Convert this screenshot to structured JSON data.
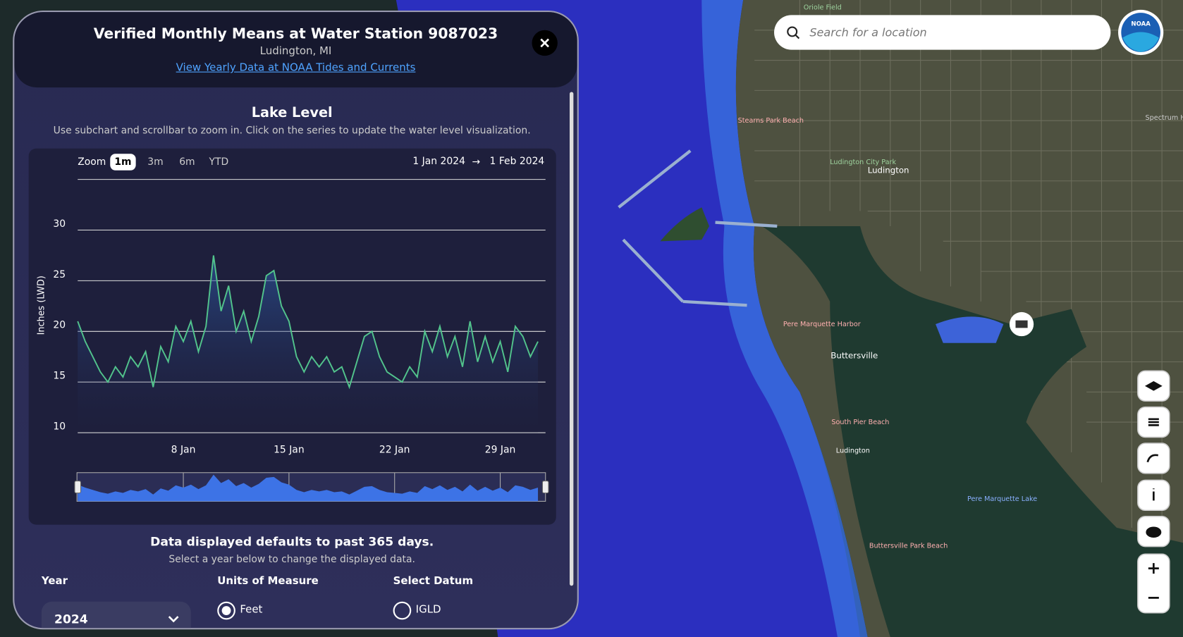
{
  "panel": {
    "title": "Verified Monthly Means at Water Station 9087023",
    "location": "Ludington, MI",
    "link": "View Yearly Data at NOAA Tides and Currents"
  },
  "chart_data": {
    "type": "line",
    "title": "Lake Level",
    "subtitle": "Use subchart and scrollbar to zoom in. Click on the series to update the water level visualization.",
    "ylabel": "Inches (LWD)",
    "zoom_label": "Zoom",
    "zoom_options": [
      "1m",
      "3m",
      "6m",
      "YTD"
    ],
    "zoom_selected": 0,
    "range_from": "1 Jan 2024",
    "range_arrow": "→",
    "range_to": "1 Feb 2024",
    "x": [
      1,
      1.5,
      2,
      2.5,
      3,
      3.5,
      4,
      4.5,
      5,
      5.5,
      6,
      6.5,
      7,
      7.5,
      8,
      8.5,
      9,
      9.5,
      10,
      10.5,
      11,
      11.5,
      12,
      12.5,
      13,
      13.5,
      14,
      14.5,
      15,
      15.5,
      16,
      16.5,
      17,
      17.5,
      18,
      18.5,
      19,
      19.5,
      20,
      20.5,
      21,
      21.5,
      22,
      22.5,
      23,
      23.5,
      24,
      24.5,
      25,
      25.5,
      26,
      26.5,
      27,
      27.5,
      28,
      28.5,
      29,
      29.5,
      30,
      30.5,
      31,
      31.5
    ],
    "values": [
      21,
      19,
      17.5,
      16,
      15,
      16.5,
      15.5,
      17.5,
      16.5,
      18,
      14.5,
      18.5,
      17,
      20.5,
      19,
      21,
      18,
      20.5,
      27.5,
      22,
      24.5,
      20,
      22,
      19,
      21.5,
      25.5,
      26,
      22.5,
      21,
      17.5,
      16,
      17.5,
      16.5,
      17.5,
      16,
      16.5,
      14.5,
      17,
      19.5,
      20,
      17.5,
      16,
      15.5,
      15,
      16.5,
      15.5,
      20,
      18,
      20.5,
      17.5,
      19.5,
      16.5,
      21,
      17,
      19.5,
      17,
      19,
      16,
      20.5,
      19.5,
      17.5,
      19
    ],
    "color": "#52c48c",
    "navigator_color": "#3d73e6",
    "xlim": [
      1,
      32
    ],
    "xticks": [
      {
        "value": 8,
        "label": "8 Jan"
      },
      {
        "value": 15,
        "label": "15 Jan"
      },
      {
        "value": 22,
        "label": "22 Jan"
      },
      {
        "value": 29,
        "label": "29 Jan"
      }
    ],
    "ylim": [
      10,
      35
    ],
    "yticks": [
      10,
      15,
      20,
      25,
      30
    ],
    "grid": true
  },
  "settings": {
    "info": "Data displayed defaults to past 365 days.",
    "hint": "Select a year below to change the displayed data.",
    "year_label": "Year",
    "year_value": "2024",
    "units_label": "Units of Measure",
    "units_option": "Feet",
    "datum_label": "Select Datum",
    "datum_option": "IGLD"
  },
  "map": {
    "search_placeholder": "Search for a location",
    "logo": "NOAA",
    "labels": [
      "Oriole Field",
      "Stearns Park Beach",
      "Ludington City Park",
      "Ludington",
      "Spectrum Health Ludington Hospital",
      "Pere Marquette Harbor",
      "Buttersville",
      "South Pier Beach",
      "Ludington",
      "Pere Marquette Lake",
      "Buttersville Park Beach"
    ]
  }
}
